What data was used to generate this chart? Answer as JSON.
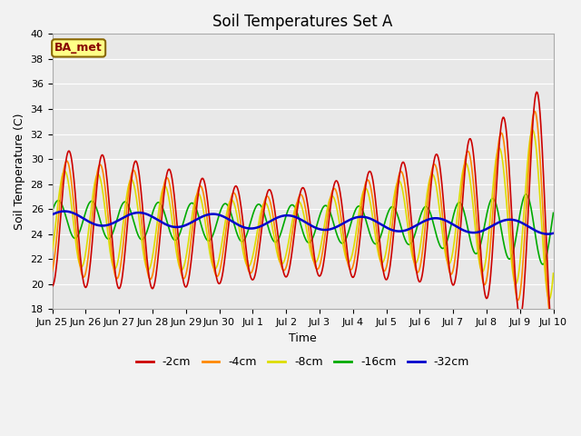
{
  "title": "Soil Temperatures Set A",
  "xlabel": "Time",
  "ylabel": "Soil Temperature (C)",
  "ylim": [
    18,
    40
  ],
  "yticks": [
    18,
    20,
    22,
    24,
    26,
    28,
    30,
    32,
    34,
    36,
    38,
    40
  ],
  "xtick_labels": [
    "Jun 25",
    "Jun 26",
    "Jun 27",
    "Jun 28",
    "Jun 29",
    "Jun 30",
    "Jul 1",
    "Jul 2",
    "Jul 3",
    "Jul 4",
    "Jul 5",
    "Jul 6",
    "Jul 7",
    "Jul 8",
    "Jul 9",
    "Jul 10"
  ],
  "line_colors": [
    "#cc0000",
    "#ff8800",
    "#dddd00",
    "#00aa00",
    "#0000cc"
  ],
  "line_widths": [
    1.2,
    1.2,
    1.2,
    1.2,
    1.8
  ],
  "legend_labels": [
    "-2cm",
    "-4cm",
    "-8cm",
    "-16cm",
    "-32cm"
  ],
  "annotation_text": "BA_met",
  "bg_color": "#e8e8e8",
  "fig_bg_color": "#f2f2f2",
  "title_fontsize": 12,
  "axis_label_fontsize": 9,
  "tick_fontsize": 8
}
